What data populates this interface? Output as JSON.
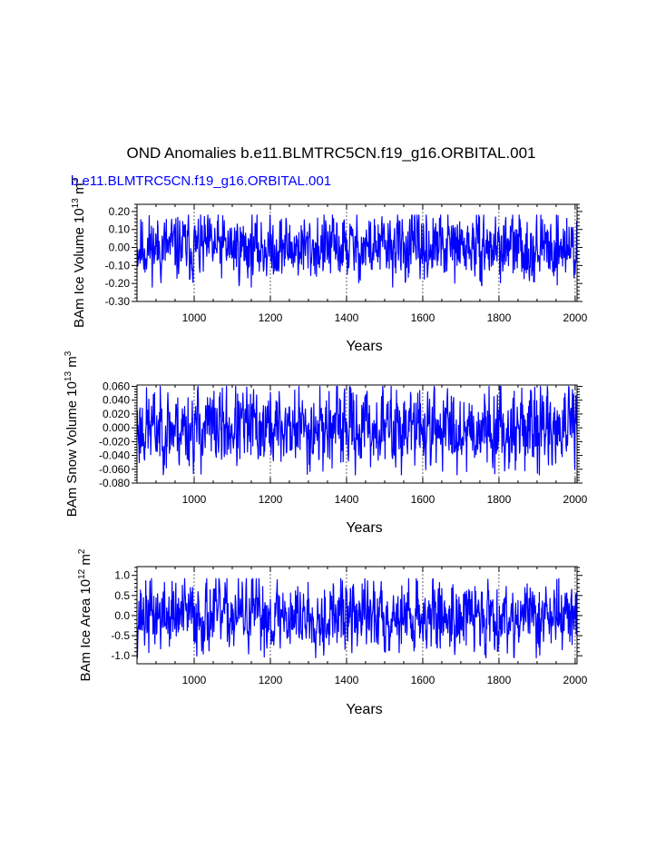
{
  "page": {
    "title": "OND Anomalies b.e11.BLMTRC5CN.f19_g16.ORBITAL.001",
    "subtitle": "b.e11.BLMTRC5CN.f19_g16.ORBITAL.001"
  },
  "colors": {
    "series": "#0000ff",
    "axis": "#000000",
    "grid": "#000000"
  },
  "chart_data": [
    {
      "type": "line",
      "name": "ice-volume",
      "ylabel_text": "BAm Ice Volume 10",
      "ylabel_exp": "13",
      "ylabel_unit": " m",
      "ylabel_unit_exp": "3",
      "xlabel": "Years",
      "xlim": [
        850,
        2005
      ],
      "ylim": [
        -0.3,
        0.24
      ],
      "x_ticks": [
        1000,
        1200,
        1400,
        1600,
        1800,
        2000
      ],
      "x_tick_labels": [
        "1000",
        "1200",
        "1400",
        "1600",
        "1800",
        "2000"
      ],
      "y_ticks": [
        0.2,
        0.1,
        0.0,
        -0.1,
        -0.2,
        -0.3
      ],
      "y_tick_labels": [
        "0.20",
        "0.10",
        "0.00",
        "-0.10",
        "-0.20",
        "-0.30"
      ],
      "grid_x": "dashed at major ticks",
      "series": [
        {
          "name": "BAm Ice Volume anomaly",
          "seed": 11,
          "amplitude": 0.085,
          "min": -0.22,
          "max": 0.18,
          "x_start": 850,
          "x_end": 2005
        }
      ]
    },
    {
      "type": "line",
      "name": "snow-volume",
      "ylabel_text": "BAm Snow Volume 10",
      "ylabel_exp": "13",
      "ylabel_unit": " m",
      "ylabel_unit_exp": "3",
      "xlabel": "Years",
      "xlim": [
        850,
        2005
      ],
      "ylim": [
        -0.08,
        0.062
      ],
      "x_ticks": [
        1000,
        1200,
        1400,
        1600,
        1800,
        2000
      ],
      "x_tick_labels": [
        "1000",
        "1200",
        "1400",
        "1600",
        "1800",
        "2000"
      ],
      "y_ticks": [
        0.06,
        0.04,
        0.02,
        0.0,
        -0.02,
        -0.04,
        -0.06,
        -0.08
      ],
      "y_tick_labels": [
        "0.060",
        "0.040",
        "0.020",
        "0.000",
        "-0.020",
        "-0.040",
        "-0.060",
        "-0.080"
      ],
      "grid_x": "dashed at major ticks",
      "series": [
        {
          "name": "BAm Snow Volume anomaly",
          "seed": 23,
          "amplitude": 0.027,
          "min": -0.068,
          "max": 0.06,
          "x_start": 850,
          "x_end": 2005
        }
      ]
    },
    {
      "type": "line",
      "name": "ice-area",
      "ylabel_text": "BAm Ice Area 10",
      "ylabel_exp": "12",
      "ylabel_unit": " m",
      "ylabel_unit_exp": "2",
      "xlabel": "Years",
      "xlim": [
        850,
        2005
      ],
      "ylim": [
        -1.2,
        1.22
      ],
      "x_ticks": [
        1000,
        1200,
        1400,
        1600,
        1800,
        2000
      ],
      "x_tick_labels": [
        "1000",
        "1200",
        "1400",
        "1600",
        "1800",
        "2000"
      ],
      "y_ticks": [
        1.0,
        0.5,
        0.0,
        -0.5,
        -1.0
      ],
      "y_tick_labels": [
        "1.0",
        "0.5",
        "0.0",
        "-0.5",
        "-1.0"
      ],
      "grid_x": "dashed at major ticks",
      "series": [
        {
          "name": "BAm Ice Area anomaly",
          "seed": 37,
          "amplitude": 0.42,
          "min": -1.05,
          "max": 0.92,
          "x_start": 850,
          "x_end": 2005
        }
      ]
    }
  ]
}
